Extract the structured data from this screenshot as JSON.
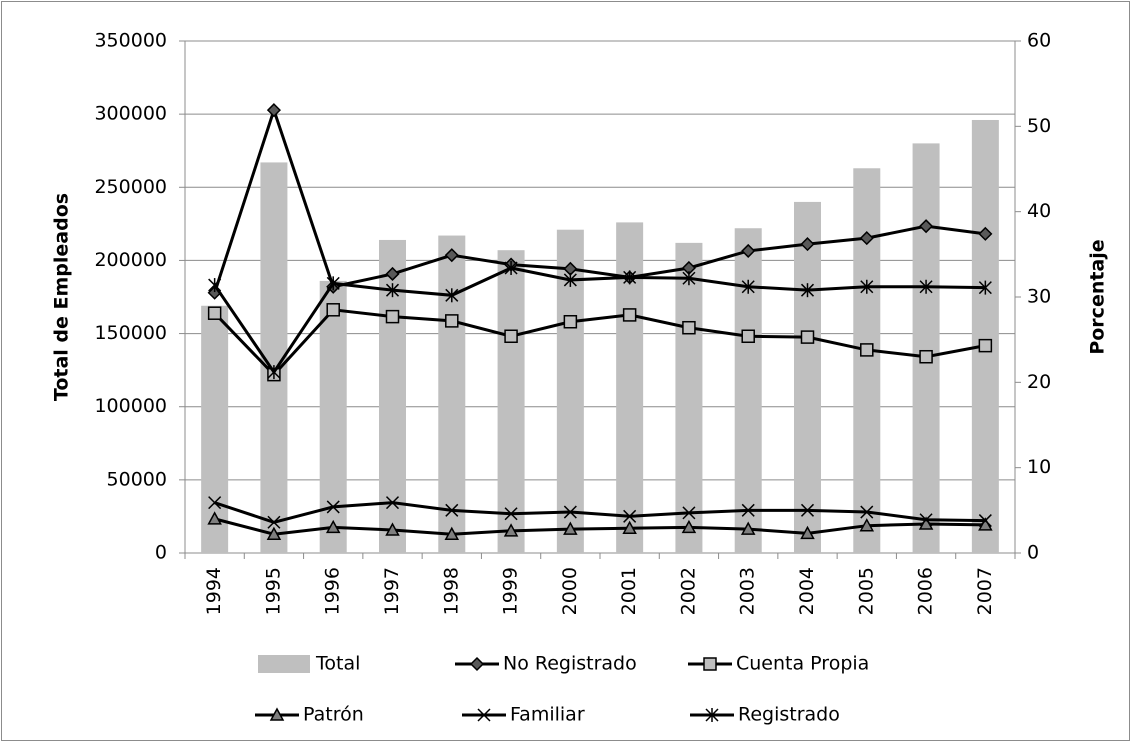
{
  "chart_data": {
    "type": "combo",
    "y_label": "Total de Empleados",
    "y2_label": "Porcentaje",
    "categories": [
      "1994",
      "1995",
      "1996",
      "1997",
      "1998",
      "1999",
      "2000",
      "2001",
      "2002",
      "2003",
      "2004",
      "2005",
      "2006",
      "2007"
    ],
    "ylim": [
      0,
      350000
    ],
    "yticks": [
      0,
      50000,
      100000,
      150000,
      200000,
      250000,
      300000,
      350000
    ],
    "y2lim": [
      0,
      60
    ],
    "y2ticks": [
      0,
      10,
      20,
      30,
      40,
      50,
      60
    ],
    "grid": true,
    "legend": "bottom",
    "series": [
      {
        "name": "Total",
        "type": "bar",
        "axis": "y",
        "color": "#bfbfbf",
        "values": [
          169000,
          267000,
          186000,
          214000,
          217000,
          207000,
          221000,
          226000,
          212000,
          222000,
          240000,
          263000,
          280000,
          296000
        ]
      },
      {
        "name": "No Registrado",
        "type": "line",
        "axis": "y2",
        "color": "#000000",
        "marker": "diamond",
        "values": [
          30.5,
          51.9,
          31.2,
          32.7,
          34.9,
          33.8,
          33.3,
          32.3,
          33.4,
          35.4,
          36.2,
          36.9,
          38.3,
          37.4
        ]
      },
      {
        "name": "Cuenta Propia",
        "type": "line",
        "axis": "y2",
        "color": "#000000",
        "marker": "square",
        "values": [
          28.1,
          20.9,
          28.5,
          27.7,
          27.2,
          25.4,
          27.1,
          27.9,
          26.4,
          25.4,
          25.3,
          23.8,
          23.0,
          24.3
        ]
      },
      {
        "name": "Patrón",
        "type": "line",
        "axis": "y2",
        "color": "#000000",
        "marker": "triangle",
        "values": [
          4.0,
          2.2,
          3.0,
          2.7,
          2.2,
          2.6,
          2.8,
          2.9,
          3.0,
          2.8,
          2.3,
          3.2,
          3.4,
          3.3
        ]
      },
      {
        "name": "Familiar",
        "type": "line",
        "axis": "y2",
        "color": "#000000",
        "marker": "x",
        "values": [
          5.9,
          3.6,
          5.4,
          5.9,
          5.0,
          4.6,
          4.8,
          4.3,
          4.7,
          5.0,
          5.0,
          4.8,
          3.9,
          3.8
        ]
      },
      {
        "name": "Registrado",
        "type": "line",
        "axis": "y2",
        "color": "#000000",
        "marker": "star",
        "values": [
          31.4,
          21.2,
          31.6,
          30.8,
          30.2,
          33.4,
          32.0,
          32.3,
          32.2,
          31.2,
          30.8,
          31.2,
          31.2,
          31.1
        ]
      }
    ]
  }
}
